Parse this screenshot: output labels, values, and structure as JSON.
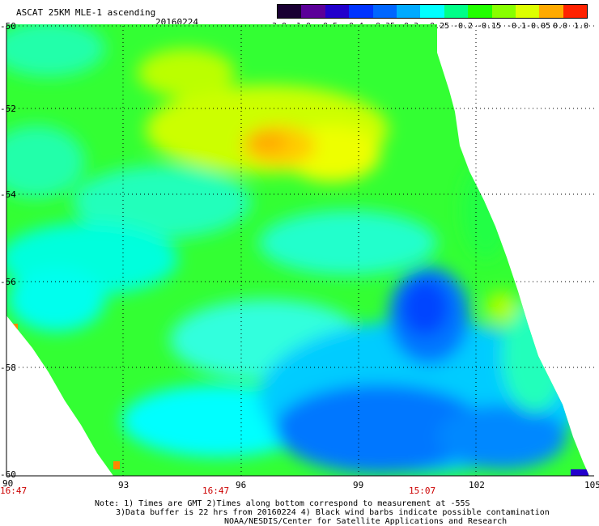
{
  "header": {
    "title": "ASCAT 25KM MLE-1 ascending",
    "date": "20160224"
  },
  "colorbar": {
    "labels": [
      "-3.0",
      "-1.0",
      "-0.5",
      "-0.4",
      "-0.35",
      "-0.3",
      "-0.25",
      "-0.2",
      "-0.15",
      "-0.1",
      "-0.05",
      "0.0",
      "1.0"
    ],
    "colors": [
      "#1a0033",
      "#5b0099",
      "#2200cc",
      "#0033ff",
      "#0066ff",
      "#00aaff",
      "#00ffff",
      "#00ff88",
      "#22ff00",
      "#88ff00",
      "#ddff00",
      "#ffaa00",
      "#ff2200"
    ]
  },
  "map": {
    "lat_labels": [
      "-50",
      "-52",
      "-54",
      "-56",
      "-58",
      "-60"
    ],
    "lon_labels": [
      "90",
      "93",
      "96",
      "99",
      "102",
      "105"
    ],
    "time_labels": [
      "16:47",
      "16:47",
      "15:07"
    ]
  },
  "notes": {
    "line1": "Note: 1) Times are GMT 2)Times along bottom correspond to measurement at -55S",
    "line2": "3)Data buffer is 22 hrs from 20160224 4) Black wind barbs indicate possible contamination",
    "line3": "NOAA/NESDIS/Center for Satellite Applications and Research"
  }
}
